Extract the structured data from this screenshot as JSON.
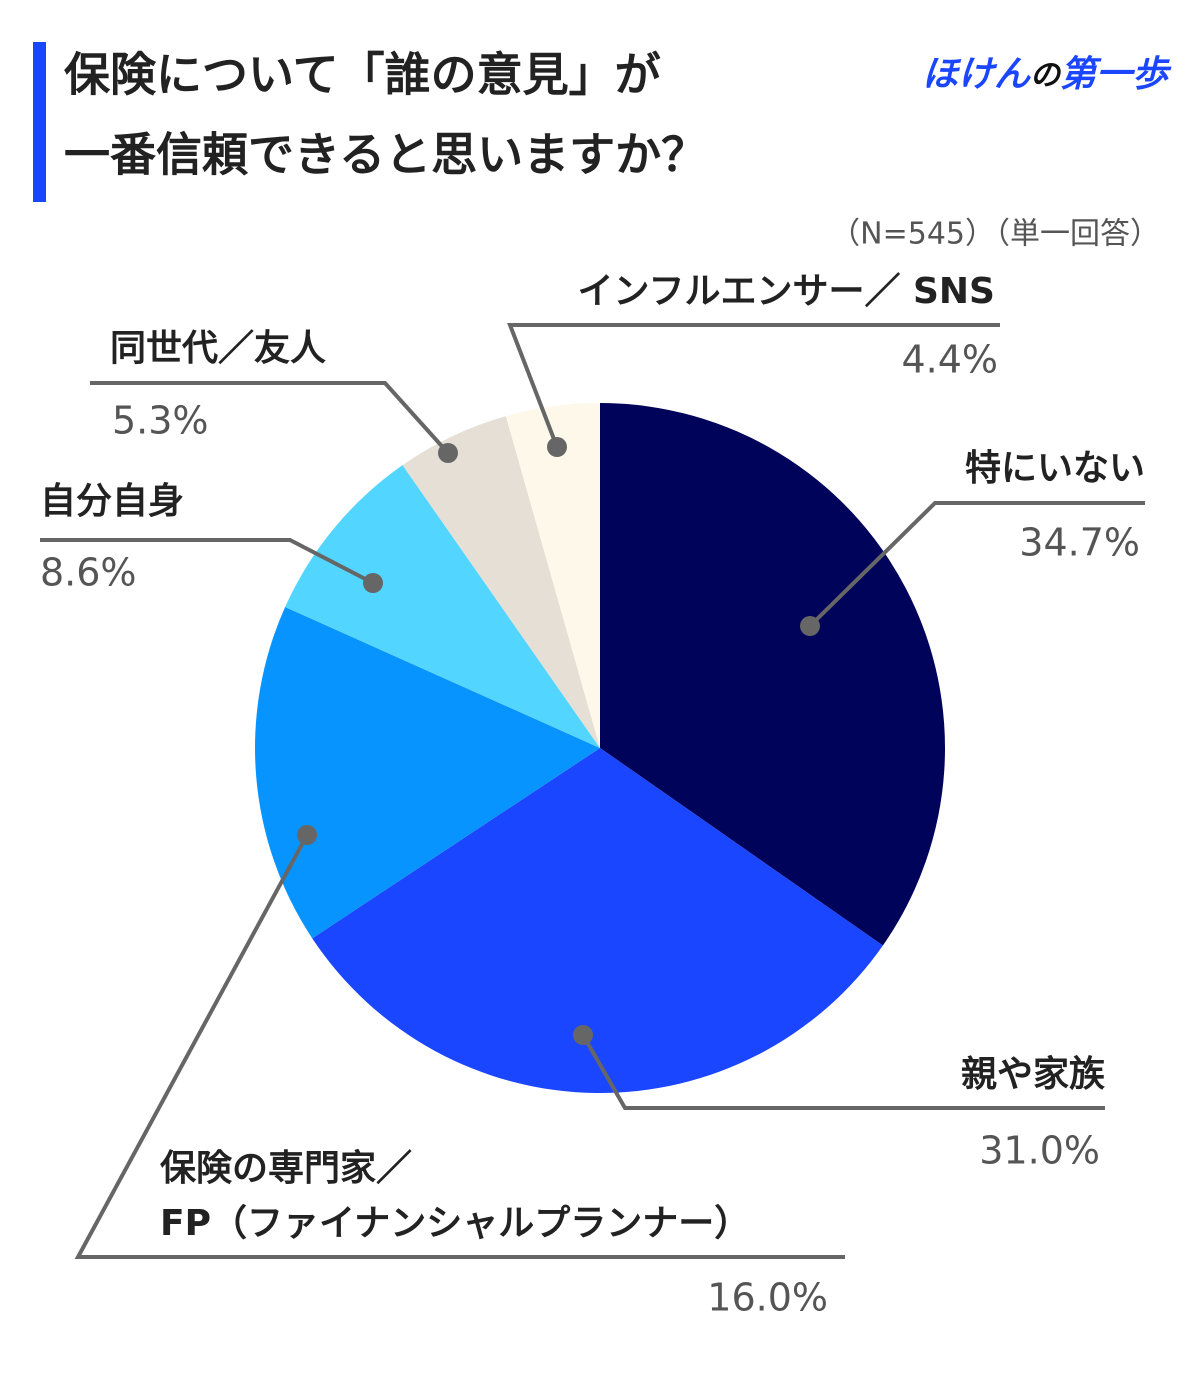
{
  "chart_data": {
    "type": "pie",
    "title": [
      "保険について「誰の意見」が",
      "一番信頼できると思いますか？"
    ],
    "brand": [
      "ほけん",
      "の",
      "第一歩"
    ],
    "note": "（N=545）（単一回答）",
    "categories": [
      "特にいない",
      "親や家族",
      "保険の専門家／\nFP（ファイナンシャルプランナー）",
      "自分自身",
      "同世代／友人",
      "インフルエンサー／ SNS"
    ],
    "values": [
      34.7,
      31.0,
      16.0,
      8.6,
      5.3,
      4.4
    ],
    "value_labels": [
      "34.7%",
      "31.0%",
      "16.0%",
      "8.6%",
      "5.3%",
      "4.4%"
    ],
    "colors": [
      "#00035a",
      "#1b46ff",
      "#0894ff",
      "#52d6ff",
      "#e5dfd6",
      "#fdf8ea"
    ]
  }
}
